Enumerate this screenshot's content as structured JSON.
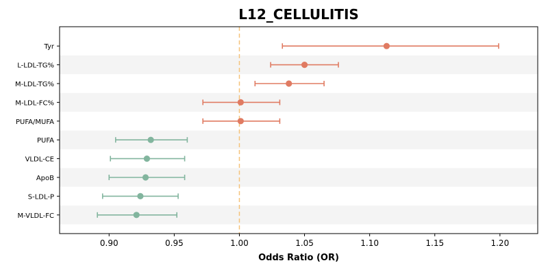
{
  "chart_data": {
    "type": "scatter",
    "title": "L12_CELLULITIS",
    "xlabel": "Odds Ratio (OR)",
    "ylabel": "",
    "xlim": [
      0.862,
      1.229
    ],
    "x_ticks": [
      "0.90",
      "0.95",
      "1.00",
      "1.05",
      "1.10",
      "1.15",
      "1.20"
    ],
    "x_tick_values": [
      0.9,
      0.95,
      1.0,
      1.05,
      1.1,
      1.15,
      1.2
    ],
    "reference_line": 1.0,
    "grid": false,
    "categories": [
      "Tyr",
      "L-LDL-TG%",
      "M-LDL-TG%",
      "M-LDL-FC%",
      "PUFA/MUFA",
      "PUFA",
      "VLDL-CE",
      "ApoB",
      "S-LDL-P",
      "M-VLDL-FC"
    ],
    "estimates": [
      1.113,
      1.05,
      1.038,
      1.001,
      1.001,
      0.932,
      0.929,
      0.928,
      0.924,
      0.921
    ],
    "ci_lower": [
      1.033,
      1.024,
      1.012,
      0.972,
      0.972,
      0.905,
      0.901,
      0.9,
      0.895,
      0.891
    ],
    "ci_upper": [
      1.199,
      1.076,
      1.065,
      1.031,
      1.031,
      0.96,
      0.958,
      0.958,
      0.953,
      0.952
    ],
    "colors": {
      "positive": "#e07b62",
      "negative": "#82b59e",
      "reference": "#f5c27a",
      "band": "#f4f4f4"
    }
  }
}
